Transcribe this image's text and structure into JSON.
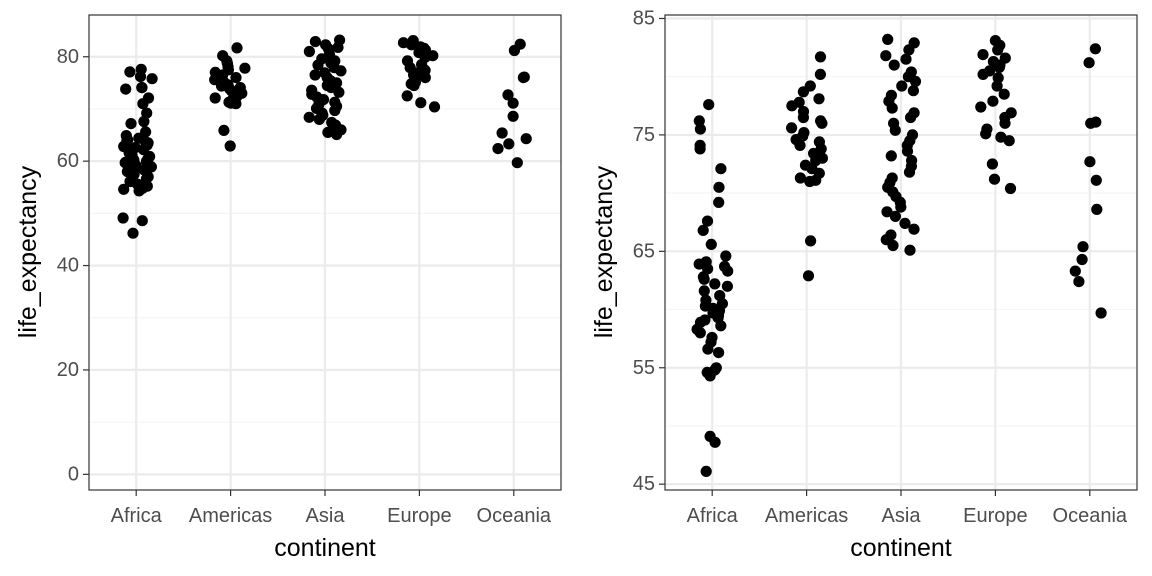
{
  "chart_data": [
    {
      "type": "scatter",
      "jitter": true,
      "xlabel": "continent",
      "ylabel": "life_expectancy",
      "categories": [
        "Africa",
        "Americas",
        "Asia",
        "Europe",
        "Oceania"
      ],
      "ylim": [
        -3,
        88
      ],
      "yticks": [
        0,
        20,
        40,
        60,
        80
      ],
      "grid": true,
      "colors": {
        "point": "#000000",
        "panel_border": "#333333",
        "grid_major": "#ebebeb",
        "grid_minor": "#f5f5f5",
        "tick_text": "#4d4d4d"
      },
      "points": {
        "Africa": [
          77.6,
          77.1,
          76.2,
          75.8,
          74.1,
          74.1,
          73.8,
          72.1,
          71.0,
          69.2,
          67.6,
          67.2,
          65.6,
          64.9,
          64.4,
          64.1,
          63.9,
          63.7,
          63.5,
          63.1,
          62.8,
          62.6,
          62.2,
          62.0,
          61.6,
          61.2,
          60.9,
          60.5,
          60.3,
          60.1,
          60.0,
          59.8,
          59.7,
          59.5,
          59.3,
          59.1,
          58.9,
          58.6,
          58.3,
          58.0,
          57.5,
          57.0,
          56.6,
          56.1,
          55.6,
          55.2,
          54.8,
          54.6,
          54.3,
          49.1,
          48.6,
          46.2
        ],
        "Americas": [
          81.7,
          80.2,
          79.2,
          78.7,
          78.1,
          77.8,
          77.5,
          77.0,
          76.5,
          76.2,
          76.0,
          75.6,
          75.2,
          74.9,
          74.6,
          74.4,
          74.1,
          73.8,
          73.4,
          73.0,
          72.8,
          72.4,
          72.1,
          71.7,
          71.3,
          71.1,
          71.0,
          65.9,
          62.9
        ],
        "Asia": [
          83.2,
          82.9,
          82.3,
          81.8,
          81.5,
          81.0,
          80.4,
          80.0,
          79.6,
          79.2,
          78.8,
          78.4,
          77.9,
          77.3,
          76.9,
          76.5,
          76.0,
          75.4,
          75.0,
          74.5,
          74.1,
          73.6,
          73.2,
          72.8,
          72.3,
          71.8,
          71.3,
          70.9,
          70.5,
          70.1,
          69.7,
          69.2,
          68.8,
          68.4,
          68.0,
          67.4,
          66.9,
          66.4,
          66.0,
          65.5,
          65.1
        ],
        "Europe": [
          83.1,
          82.7,
          82.3,
          81.9,
          81.6,
          81.3,
          81.0,
          80.8,
          80.5,
          80.2,
          79.9,
          79.2,
          78.5,
          77.9,
          77.4,
          76.9,
          76.5,
          76.0,
          75.5,
          75.1,
          74.8,
          74.5,
          72.5,
          71.2,
          70.4
        ],
        "Oceania": [
          82.4,
          81.2,
          76.1,
          76.0,
          72.7,
          71.1,
          68.6,
          65.4,
          64.3,
          63.3,
          62.4,
          59.7
        ]
      }
    },
    {
      "type": "scatter",
      "jitter": true,
      "xlabel": "continent",
      "ylabel": "life_expectancy",
      "categories": [
        "Africa",
        "Americas",
        "Asia",
        "Europe",
        "Oceania"
      ],
      "ylim": [
        44.5,
        85.3
      ],
      "yticks": [
        45,
        55,
        65,
        75,
        85
      ],
      "grid": true,
      "colors": {
        "point": "#000000",
        "panel_border": "#333333",
        "grid_major": "#ebebeb",
        "grid_minor": "#f5f5f5",
        "tick_text": "#4d4d4d"
      },
      "points": {
        "Africa": [
          77.6,
          76.2,
          75.5,
          74.1,
          73.8,
          72.1,
          70.5,
          69.2,
          67.6,
          66.8,
          65.6,
          64.6,
          64.1,
          63.9,
          63.7,
          63.5,
          63.3,
          62.8,
          62.6,
          62.2,
          62.0,
          61.6,
          61.2,
          60.8,
          60.5,
          60.3,
          60.1,
          59.9,
          59.7,
          59.5,
          59.3,
          59.1,
          58.9,
          58.6,
          58.3,
          58.0,
          57.6,
          57.2,
          56.6,
          56.3,
          55.0,
          54.8,
          54.6,
          54.3,
          49.1,
          48.6,
          46.1
        ],
        "Americas": [
          81.7,
          80.2,
          79.2,
          78.7,
          78.1,
          77.8,
          77.5,
          77.0,
          76.5,
          76.2,
          76.0,
          75.6,
          75.2,
          74.9,
          74.6,
          74.4,
          74.1,
          73.8,
          73.4,
          73.0,
          72.8,
          72.4,
          72.1,
          71.7,
          71.3,
          71.1,
          71.0,
          65.9,
          62.9
        ],
        "Asia": [
          83.2,
          82.9,
          82.3,
          81.8,
          81.5,
          81.0,
          80.4,
          80.0,
          79.6,
          79.2,
          78.8,
          78.4,
          77.9,
          77.3,
          76.9,
          76.5,
          76.0,
          75.4,
          75.0,
          74.5,
          74.1,
          73.6,
          73.2,
          72.8,
          72.3,
          71.8,
          71.3,
          70.9,
          70.5,
          70.1,
          69.7,
          69.2,
          68.8,
          68.4,
          68.0,
          67.4,
          66.9,
          66.4,
          66.0,
          65.5,
          65.1
        ],
        "Europe": [
          83.1,
          82.7,
          82.3,
          81.9,
          81.6,
          81.3,
          81.0,
          80.8,
          80.5,
          80.2,
          79.9,
          79.2,
          78.5,
          77.9,
          77.4,
          76.9,
          76.5,
          76.0,
          75.5,
          75.1,
          74.8,
          74.5,
          72.5,
          71.2,
          70.4
        ],
        "Oceania": [
          82.4,
          81.2,
          76.1,
          76.0,
          72.7,
          71.1,
          68.6,
          65.4,
          64.3,
          63.3,
          62.4,
          59.7
        ]
      }
    }
  ]
}
